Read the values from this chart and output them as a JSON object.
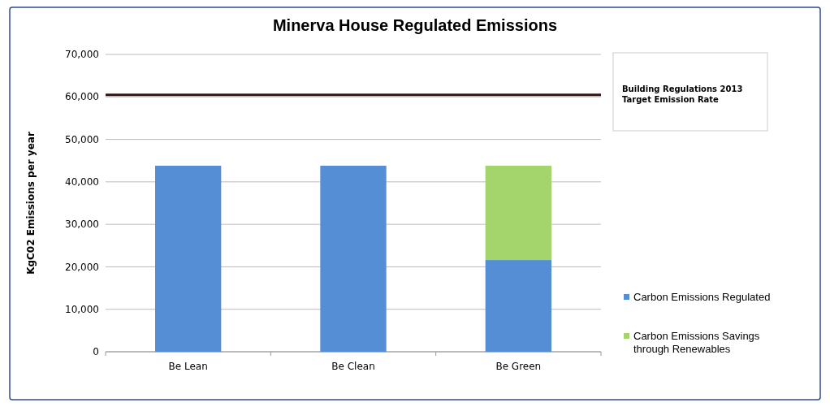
{
  "chart_data": {
    "type": "bar",
    "title": "Minerva House Regulated Emissions",
    "ylabel": "KgC02 Emissions per year",
    "categories": [
      "Be Lean",
      "Be Clean",
      "Be Green"
    ],
    "stacked": true,
    "series": [
      {
        "name": "Carbon Emissions Regulated",
        "color": "#558ed5",
        "values": [
          43800,
          43800,
          21600
        ]
      },
      {
        "name": "Carbon Emissions Savings through Renewables",
        "color": "#a4d46c",
        "values": [
          null,
          null,
          22200
        ]
      }
    ],
    "ylim": [
      0,
      70000
    ],
    "yticks": [
      {
        "value": 0,
        "label": "0"
      },
      {
        "value": 10000,
        "label": "10,000"
      },
      {
        "value": 20000,
        "label": "20,000"
      },
      {
        "value": 30000,
        "label": "30,000"
      },
      {
        "value": 40000,
        "label": "40,000"
      },
      {
        "value": 50000,
        "label": "50,000"
      },
      {
        "value": 60000,
        "label": "60,000"
      },
      {
        "value": 70000,
        "label": "70,000"
      }
    ],
    "grid": "y",
    "legend": "right",
    "ref_lines": [
      {
        "axis": "y",
        "value": 60500,
        "label": "Building Regulations 2013 Target Emission Rate",
        "color": "#3b1010"
      }
    ]
  }
}
